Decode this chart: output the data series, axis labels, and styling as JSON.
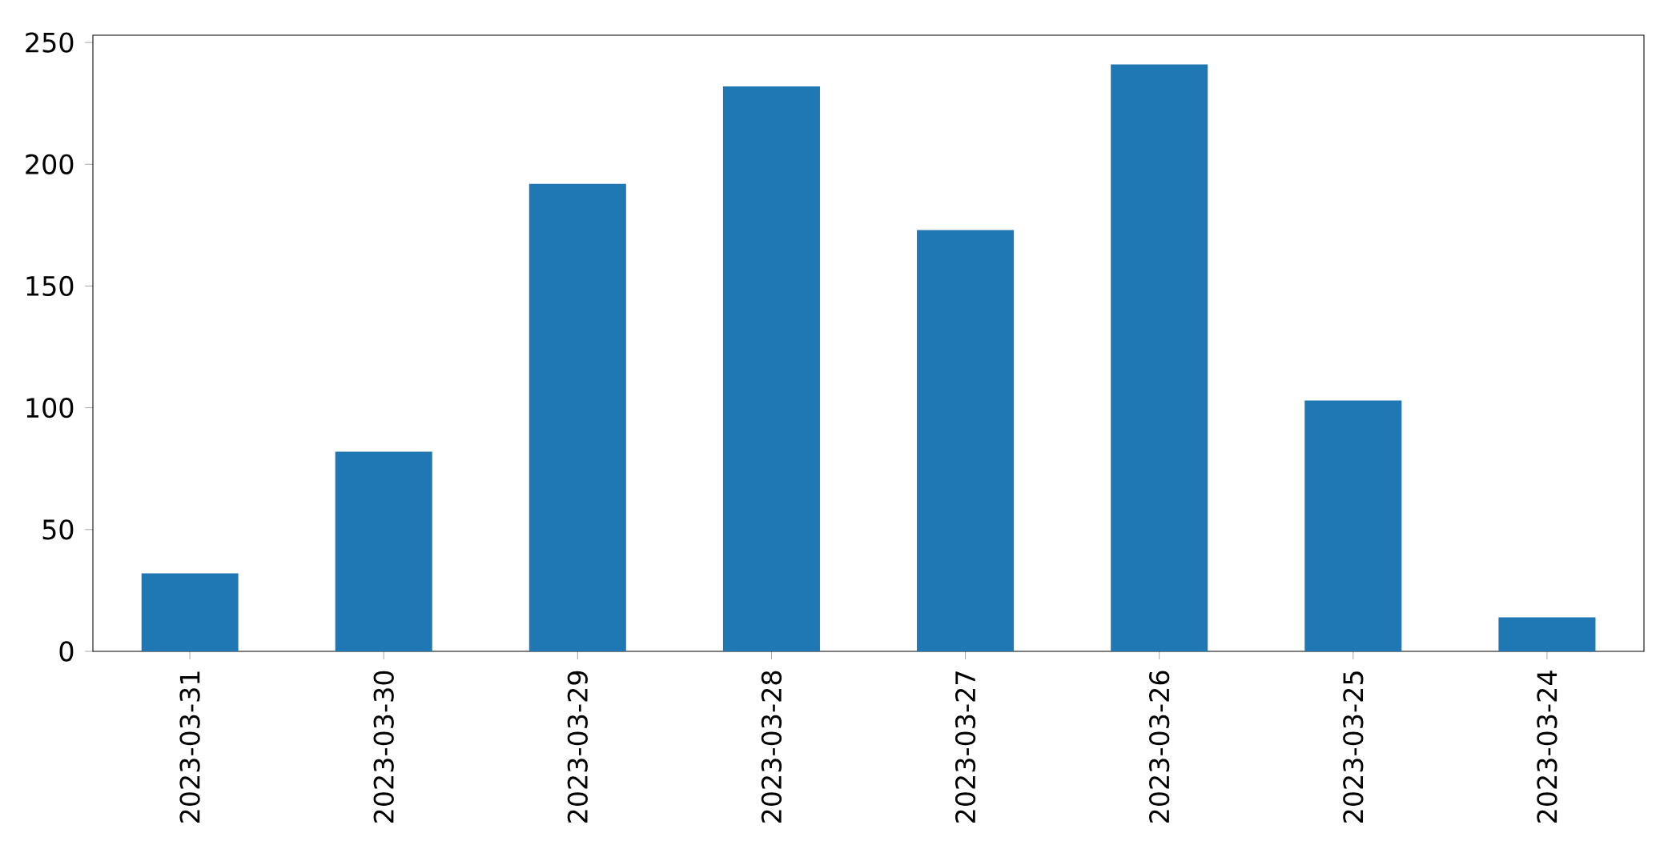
{
  "chart_data": {
    "type": "bar",
    "categories": [
      "2023-03-31",
      "2023-03-30",
      "2023-03-29",
      "2023-03-28",
      "2023-03-27",
      "2023-03-26",
      "2023-03-25",
      "2023-03-24"
    ],
    "values": [
      32,
      82,
      192,
      232,
      173,
      241,
      103,
      14
    ],
    "color": "#1f77b4",
    "ylim": [
      0,
      253
    ],
    "yticks": [
      0,
      50,
      100,
      150,
      200,
      250
    ],
    "grid": false
  }
}
